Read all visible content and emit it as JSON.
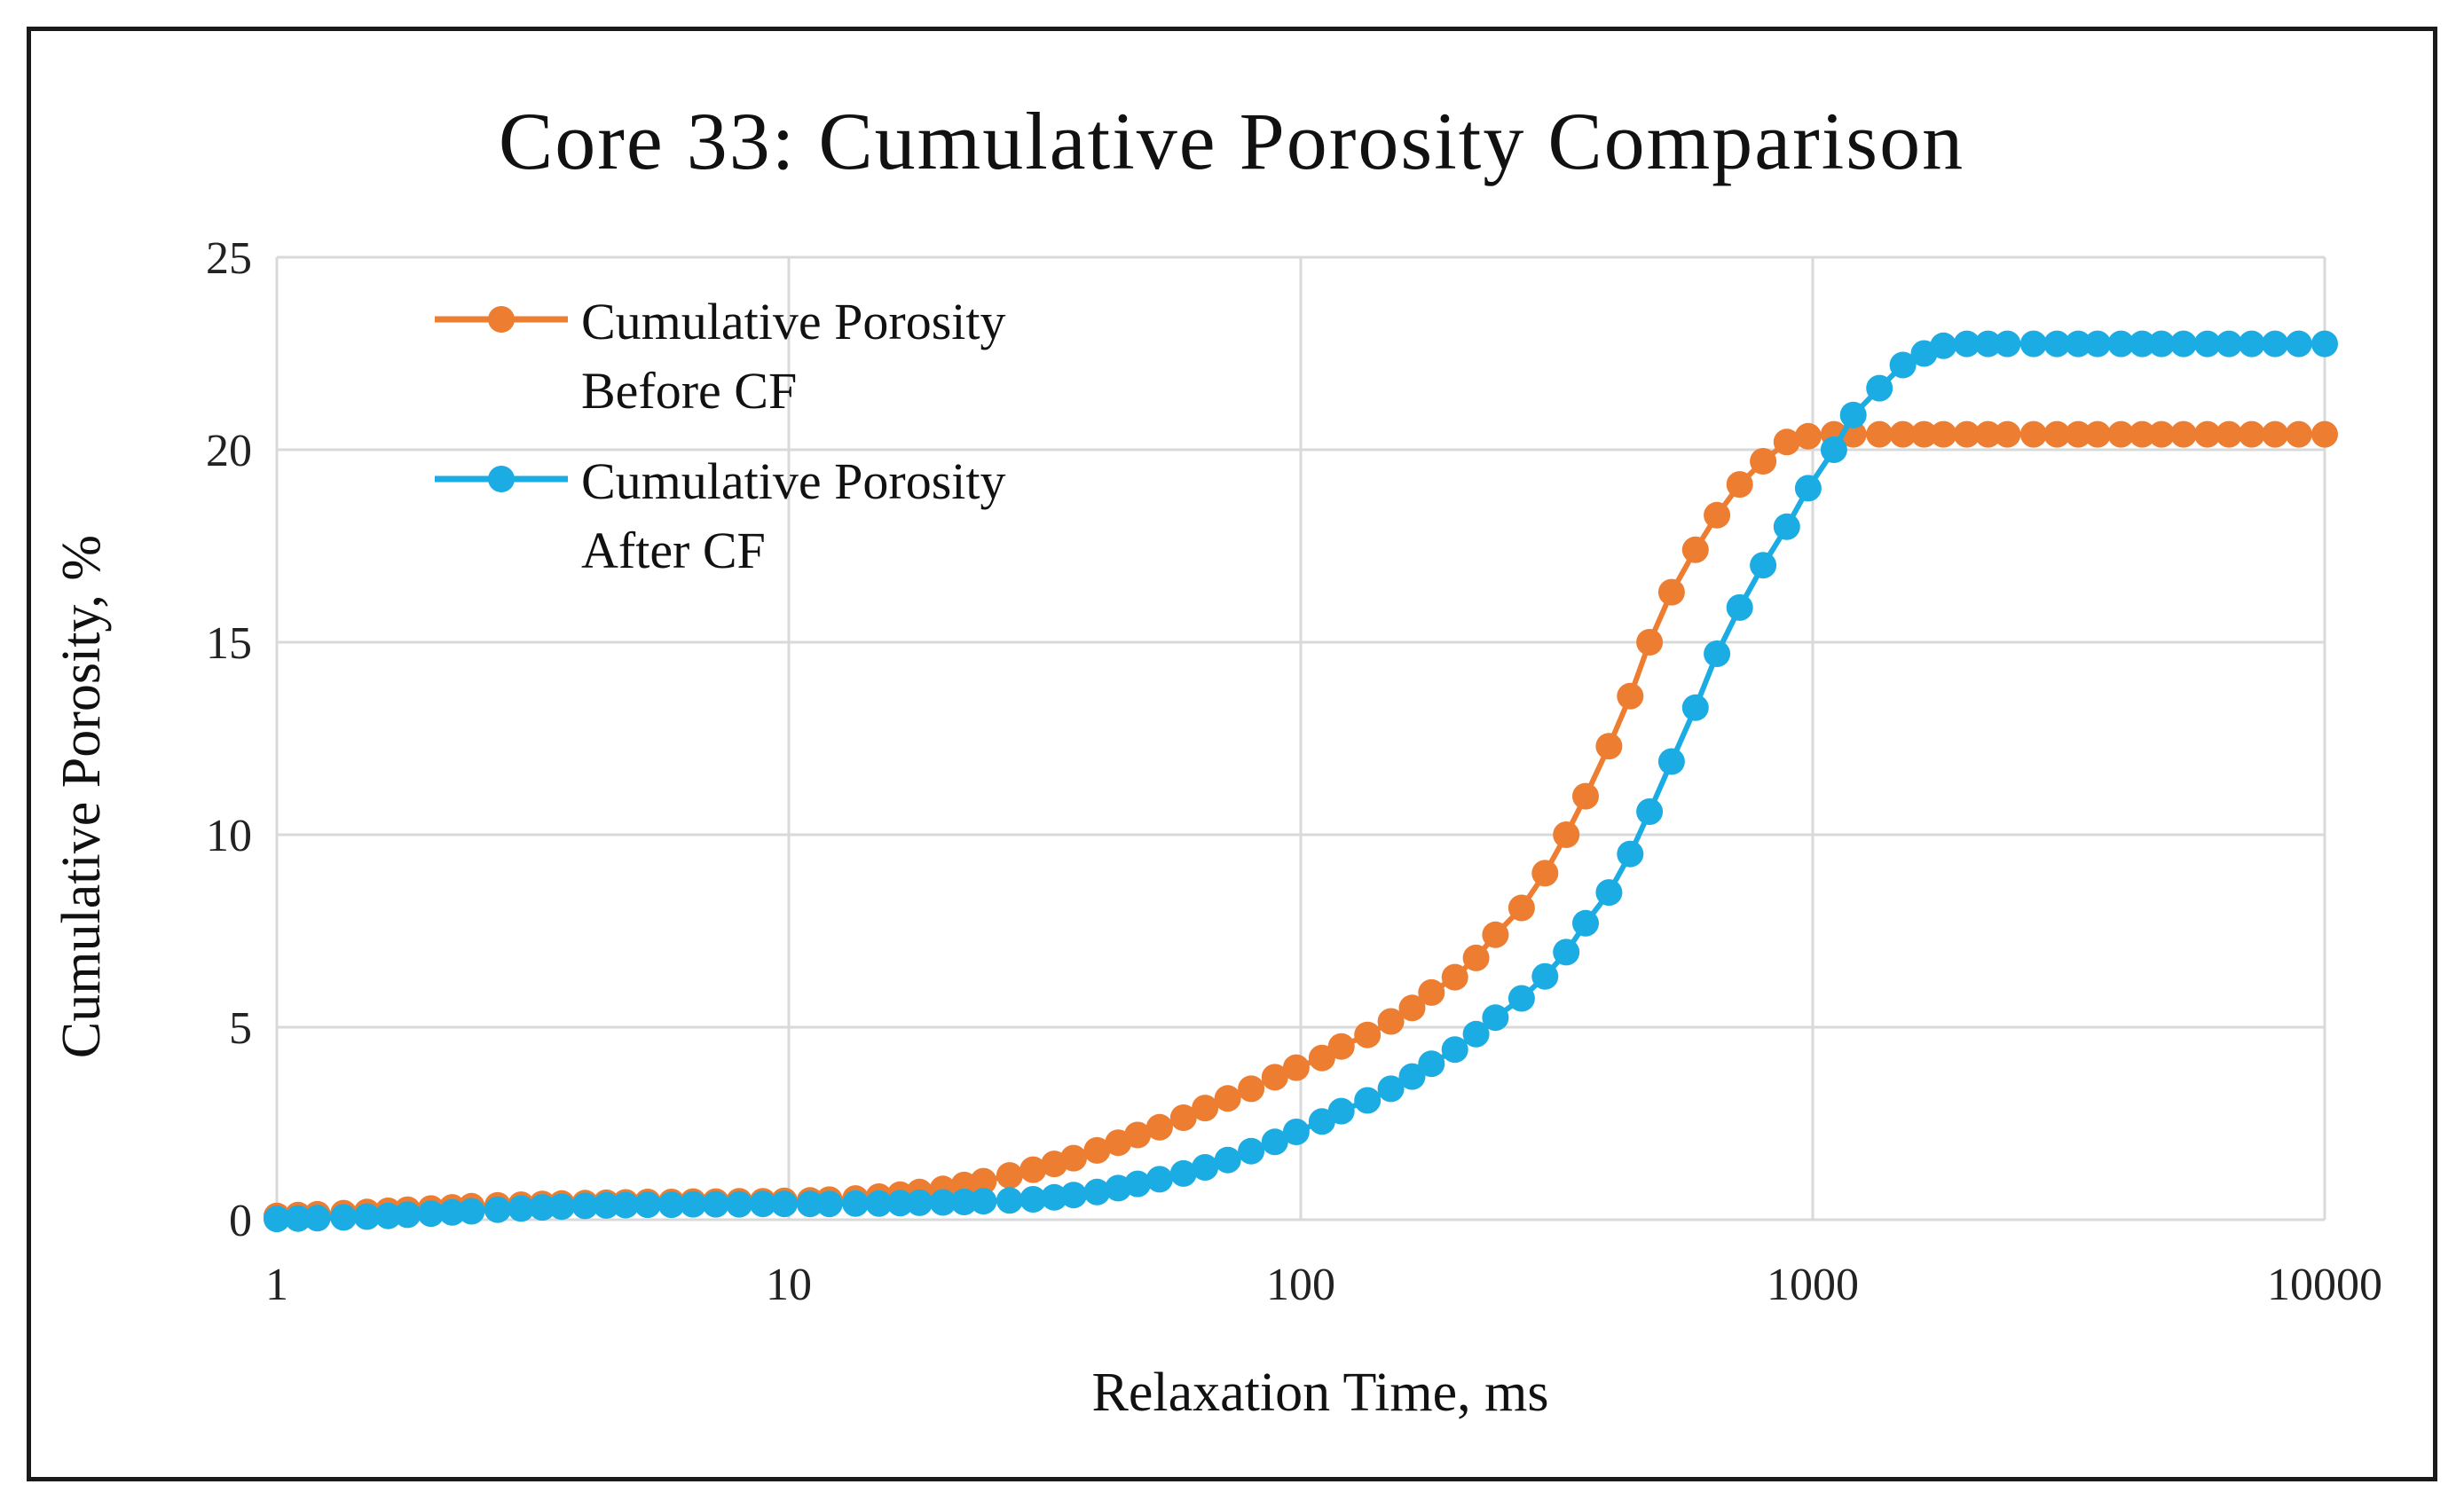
{
  "chart_data": {
    "type": "line",
    "title": "Core 33: Cumulative Porosity Comparison",
    "xlabel": "Relaxation Time, ms",
    "ylabel": "Cumulative Porosity, %",
    "xscale": "log",
    "xlim": [
      1,
      10000
    ],
    "ylim": [
      0,
      25
    ],
    "x_ticks": [
      1,
      10,
      100,
      1000,
      10000
    ],
    "x_tick_labels": [
      "1",
      "10",
      "100",
      "1000",
      "10000"
    ],
    "y_ticks": [
      0,
      5,
      10,
      15,
      20,
      25
    ],
    "y_tick_labels": [
      "0",
      "5",
      "10",
      "15",
      "20",
      "25"
    ],
    "grid": true,
    "legend_position": "top-left",
    "x": [
      1.0,
      1.1,
      1.2,
      1.35,
      1.5,
      1.65,
      1.8,
      2.0,
      2.2,
      2.4,
      2.7,
      3.0,
      3.3,
      3.6,
      4.0,
      4.4,
      4.8,
      5.3,
      5.9,
      6.5,
      7.2,
      8.0,
      8.9,
      9.8,
      11,
      12,
      13.5,
      15,
      16.5,
      18,
      20,
      22,
      24,
      27,
      30,
      33,
      36,
      40,
      44,
      48,
      53,
      59,
      65,
      72,
      80,
      89,
      98,
      110,
      120,
      135,
      150,
      165,
      180,
      200,
      220,
      240,
      270,
      300,
      330,
      360,
      400,
      440,
      480,
      530,
      590,
      650,
      720,
      800,
      890,
      980,
      1100,
      1200,
      1350,
      1500,
      1650,
      1800,
      2000,
      2200,
      2400,
      2700,
      3000,
      3300,
      3600,
      4000,
      4400,
      4800,
      5300,
      5900,
      6500,
      7200,
      8000,
      8900,
      10000
    ],
    "series": [
      {
        "name": "Cumulative Porosity Before CF",
        "legend_line1": "Cumulative Porosity",
        "legend_line2": "Before CF",
        "color": "#ED7D31",
        "values": [
          0.1,
          0.12,
          0.14,
          0.17,
          0.2,
          0.23,
          0.26,
          0.29,
          0.32,
          0.35,
          0.37,
          0.39,
          0.41,
          0.42,
          0.43,
          0.44,
          0.45,
          0.46,
          0.46,
          0.47,
          0.47,
          0.48,
          0.48,
          0.49,
          0.5,
          0.52,
          0.55,
          0.6,
          0.65,
          0.72,
          0.8,
          0.9,
          1.0,
          1.15,
          1.3,
          1.45,
          1.6,
          1.8,
          2.0,
          2.2,
          2.4,
          2.65,
          2.9,
          3.15,
          3.4,
          3.7,
          3.95,
          4.2,
          4.5,
          4.8,
          5.15,
          5.5,
          5.9,
          6.3,
          6.8,
          7.4,
          8.1,
          9.0,
          10.0,
          11.0,
          12.3,
          13.6,
          15.0,
          16.3,
          17.4,
          18.3,
          19.1,
          19.7,
          20.2,
          20.35,
          20.4,
          20.4,
          20.4,
          20.4,
          20.4,
          20.4,
          20.4,
          20.4,
          20.4,
          20.4,
          20.4,
          20.4,
          20.4,
          20.4,
          20.4,
          20.4,
          20.4,
          20.4,
          20.4,
          20.4,
          20.4,
          20.4,
          20.4
        ]
      },
      {
        "name": "Cumulative Porosity After CF",
        "legend_line1": "Cumulative Porosity",
        "legend_line2": "After CF",
        "color": "#1AACE3",
        "values": [
          0.02,
          0.03,
          0.04,
          0.06,
          0.08,
          0.1,
          0.13,
          0.16,
          0.19,
          0.22,
          0.26,
          0.29,
          0.32,
          0.34,
          0.36,
          0.37,
          0.38,
          0.39,
          0.39,
          0.4,
          0.4,
          0.4,
          0.41,
          0.41,
          0.41,
          0.41,
          0.42,
          0.42,
          0.43,
          0.44,
          0.45,
          0.46,
          0.48,
          0.5,
          0.53,
          0.58,
          0.64,
          0.72,
          0.82,
          0.93,
          1.05,
          1.2,
          1.36,
          1.55,
          1.78,
          2.02,
          2.28,
          2.55,
          2.82,
          3.1,
          3.4,
          3.72,
          4.05,
          4.42,
          4.82,
          5.25,
          5.75,
          6.32,
          6.95,
          7.7,
          8.5,
          9.5,
          10.6,
          11.9,
          13.3,
          14.7,
          15.9,
          17.0,
          18.0,
          19.0,
          20.0,
          20.9,
          21.6,
          22.2,
          22.5,
          22.7,
          22.75,
          22.75,
          22.75,
          22.75,
          22.75,
          22.75,
          22.75,
          22.75,
          22.75,
          22.75,
          22.75,
          22.75,
          22.75,
          22.75,
          22.75,
          22.75,
          22.75
        ]
      }
    ]
  }
}
